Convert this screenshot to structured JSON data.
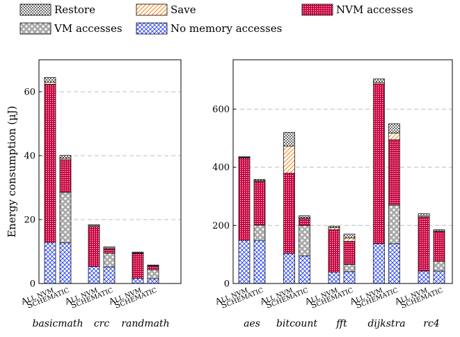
{
  "chart_data": {
    "type": "bar",
    "stacked": true,
    "ylabel": "Energy consumption (µJ)",
    "legend": {
      "placement": "top",
      "entries": [
        {
          "key": "restore",
          "label": "Restore"
        },
        {
          "key": "save",
          "label": "Save"
        },
        {
          "key": "nvm",
          "label": "NVM accesses"
        },
        {
          "key": "vm",
          "label": "VM accesses"
        },
        {
          "key": "nomem",
          "label": "No memory accesses"
        }
      ]
    },
    "configs": {
      "allnvm": {
        "prefix": "A",
        "rest": "LL NVM"
      },
      "schematic": {
        "prefix": "S",
        "rest": "CHEMATIC"
      }
    },
    "grid": "y-major-dashed",
    "colors": {
      "nomem": "#1f3cff",
      "vm": "#606060",
      "nvm": "#c8003c",
      "save": "#ff7f0e",
      "restore": "#000000"
    },
    "panels": [
      {
        "ylim": [
          0,
          70
        ],
        "yticks": [
          0,
          20,
          40,
          60
        ],
        "benchmarks": [
          {
            "name": "basicmath",
            "bars": [
              {
                "config": "allnvm",
                "nomem": 12.8,
                "vm": 0,
                "nvm": 49.5,
                "save": 0.7,
                "restore": 1.5
              },
              {
                "config": "schematic",
                "nomem": 12.7,
                "vm": 15.8,
                "nvm": 10.2,
                "save": 0.5,
                "restore": 0.9
              }
            ]
          },
          {
            "name": "crc",
            "bars": [
              {
                "config": "allnvm",
                "nomem": 5.3,
                "vm": 0,
                "nvm": 12.5,
                "save": 0.3,
                "restore": 0.3
              },
              {
                "config": "schematic",
                "nomem": 5.2,
                "vm": 4.3,
                "nvm": 1.3,
                "save": 0.3,
                "restore": 0.4
              }
            ]
          },
          {
            "name": "randmath",
            "bars": [
              {
                "config": "allnvm",
                "nomem": 1.6,
                "vm": 0,
                "nvm": 7.8,
                "save": 0.2,
                "restore": 0.2
              },
              {
                "config": "schematic",
                "nomem": 1.5,
                "vm": 2.8,
                "nvm": 1.1,
                "save": 0.2,
                "restore": 0.2
              }
            ]
          }
        ]
      },
      {
        "ylim": [
          0,
          770
        ],
        "yticks": [
          0,
          200,
          400,
          600
        ],
        "benchmarks": [
          {
            "name": "aes",
            "bars": [
              {
                "config": "allnvm",
                "nomem": 148,
                "vm": 0,
                "nvm": 284,
                "save": 2,
                "restore": 3
              },
              {
                "config": "schematic",
                "nomem": 148,
                "vm": 53,
                "nvm": 150,
                "save": 3,
                "restore": 4
              }
            ]
          },
          {
            "name": "bitcount",
            "bars": [
              {
                "config": "allnvm",
                "nomem": 103,
                "vm": 0,
                "nvm": 277,
                "save": 93,
                "restore": 47
              },
              {
                "config": "schematic",
                "nomem": 95,
                "vm": 105,
                "nvm": 23,
                "save": 3,
                "restore": 7
              }
            ]
          },
          {
            "name": "fft",
            "bars": [
              {
                "config": "allnvm",
                "nomem": 39,
                "vm": 0,
                "nvm": 146,
                "save": 7,
                "restore": 5
              },
              {
                "config": "schematic",
                "nomem": 41,
                "vm": 25,
                "nvm": 79,
                "save": 12,
                "restore": 13
              }
            ]
          },
          {
            "name": "dijkstra",
            "bars": [
              {
                "config": "allnvm",
                "nomem": 137,
                "vm": 0,
                "nvm": 550,
                "save": 5,
                "restore": 12
              },
              {
                "config": "schematic",
                "nomem": 137,
                "vm": 133,
                "nvm": 225,
                "save": 23,
                "restore": 32
              }
            ]
          },
          {
            "name": "rc4",
            "bars": [
              {
                "config": "allnvm",
                "nomem": 43,
                "vm": 0,
                "nvm": 185,
                "save": 4,
                "restore": 8
              },
              {
                "config": "schematic",
                "nomem": 43,
                "vm": 33,
                "nvm": 102,
                "save": 3,
                "restore": 4
              }
            ]
          }
        ]
      }
    ]
  }
}
